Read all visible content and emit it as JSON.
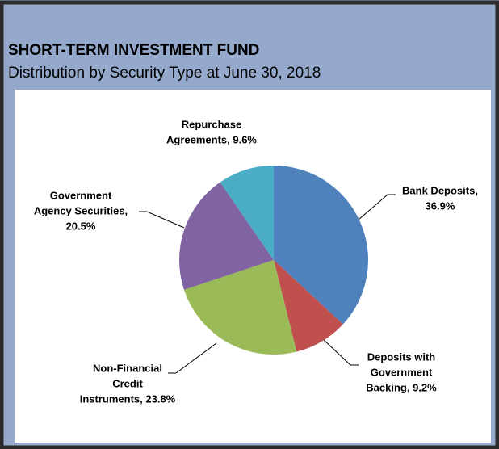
{
  "chart_data": {
    "type": "pie",
    "title": "SHORT-TERM INVESTMENT FUND",
    "subtitle": "Distribution by Security Type at June 30, 2018",
    "values": [
      36.9,
      9.2,
      23.8,
      20.5,
      9.6
    ],
    "labels": [
      [
        "Bank Deposits,",
        "36.9%"
      ],
      [
        "Deposits with",
        "Government",
        "Backing, 9.2%"
      ],
      [
        "Non-Financial",
        "Credit",
        "Instruments, 23.8%"
      ],
      [
        "Government",
        "Agency Securities,",
        "20.5%"
      ],
      [
        "Repurchase",
        "Agreements, 9.6%"
      ]
    ],
    "colors": [
      "#4f81bd",
      "#c0504d",
      "#9bbb59",
      "#8064a2",
      "#4bacc6"
    ]
  }
}
